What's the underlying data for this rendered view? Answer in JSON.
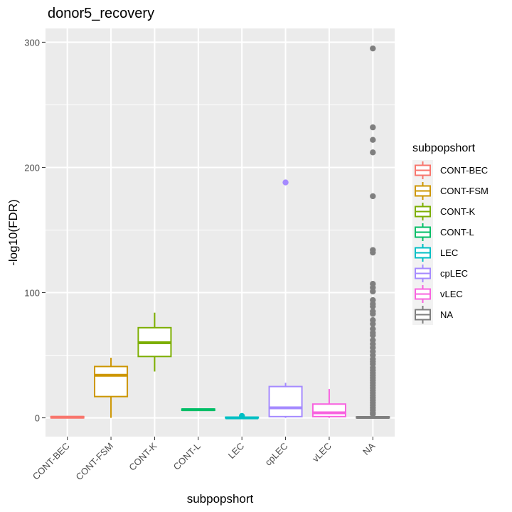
{
  "chart_data": {
    "type": "boxplot",
    "title": "donor5_recovery",
    "xlabel": "subpopshort",
    "ylabel": "-log10(FDR)",
    "ylim": [
      -15,
      311
    ],
    "yticks": [
      0,
      100,
      200,
      300
    ],
    "ytick_labels": [
      "0",
      "100",
      "200",
      "300"
    ],
    "categories": [
      "CONT-BEC",
      "CONT-FSM",
      "CONT-K",
      "CONT-L",
      "LEC",
      "cpLEC",
      "vLEC",
      "NA"
    ],
    "legend": {
      "title": "subpopshort",
      "placement": "right",
      "entries": [
        "CONT-BEC",
        "CONT-FSM",
        "CONT-K",
        "CONT-L",
        "LEC",
        "cpLEC",
        "vLEC",
        "NA"
      ]
    },
    "colors": [
      "#F8766D",
      "#CD9600",
      "#7CAE00",
      "#00BE67",
      "#00BFC4",
      "#A58AFF",
      "#F863DF",
      "#7F7F7F"
    ],
    "background": "#EBEBEB",
    "series": [
      {
        "name": "CONT-BEC",
        "min": 0,
        "q1": 0,
        "median": 0.5,
        "q3": 1,
        "max": 1.5,
        "outliers": []
      },
      {
        "name": "CONT-FSM",
        "min": 0,
        "q1": 17,
        "median": 34,
        "q3": 41,
        "max": 48,
        "outliers": []
      },
      {
        "name": "CONT-K",
        "min": 37,
        "q1": 49,
        "median": 60,
        "q3": 72,
        "max": 84,
        "outliers": []
      },
      {
        "name": "CONT-L",
        "min": 6,
        "q1": 6,
        "median": 6.5,
        "q3": 7,
        "max": 7,
        "outliers": []
      },
      {
        "name": "LEC",
        "min": 0,
        "q1": 0,
        "median": 0,
        "q3": 0.5,
        "max": 1,
        "outliers": [
          1.5
        ]
      },
      {
        "name": "cpLEC",
        "min": 0,
        "q1": 1,
        "median": 8,
        "q3": 25,
        "max": 28,
        "outliers": [
          188
        ]
      },
      {
        "name": "vLEC",
        "min": 0,
        "q1": 1,
        "median": 4,
        "q3": 11,
        "max": 23,
        "outliers": []
      },
      {
        "name": "NA",
        "min": 0,
        "q1": 0,
        "median": 0.3,
        "q3": 0.8,
        "max": 2,
        "outliers": [
          295,
          232,
          222,
          212,
          177,
          134,
          132,
          107,
          104,
          101,
          94,
          91,
          89,
          85,
          83,
          78,
          75,
          71,
          68,
          66,
          62,
          59,
          56,
          53,
          50,
          47,
          45,
          43,
          40,
          38,
          36,
          34,
          32,
          30,
          28,
          26,
          24,
          22,
          20,
          18,
          16,
          14,
          12,
          10,
          8,
          6,
          4,
          3
        ]
      }
    ]
  }
}
